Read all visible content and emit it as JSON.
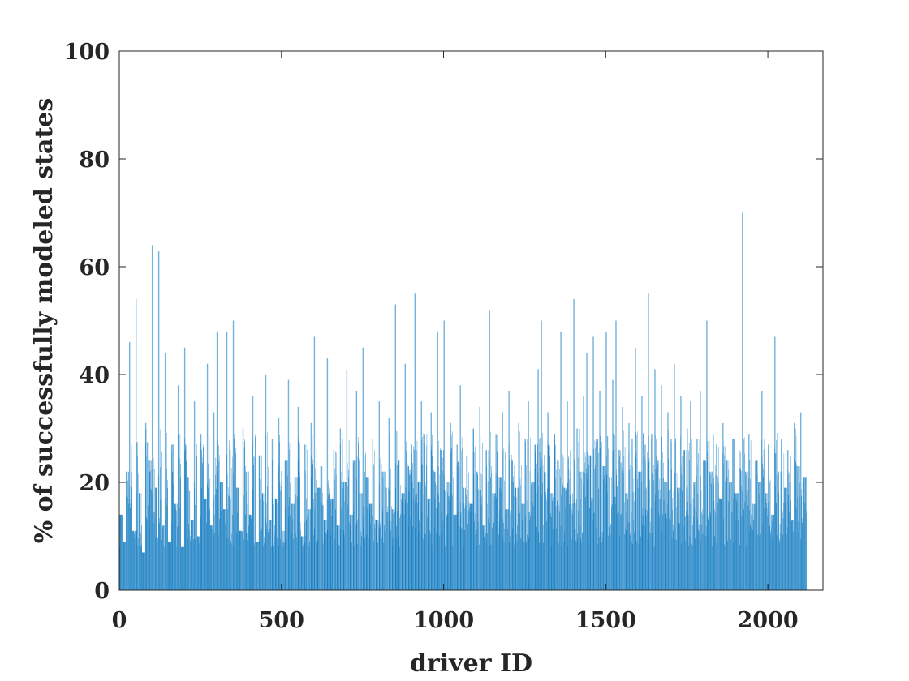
{
  "chart_data": {
    "type": "bar",
    "title": "",
    "xlabel": "driver ID",
    "ylabel": "% of successfully modeled states",
    "xlim": [
      0,
      2170
    ],
    "ylim": [
      0,
      100
    ],
    "xticks": [
      0,
      500,
      1000,
      1500,
      2000
    ],
    "yticks": [
      0,
      20,
      40,
      60,
      80,
      100
    ],
    "bar_color": "#0072bd",
    "grid": false,
    "legend": "none",
    "n_bars": 2170,
    "values_note": "",
    "series": [
      {
        "values_sampled_every_10_ids": [
          14,
          9,
          22,
          46,
          11,
          54,
          18,
          7,
          31,
          24,
          64,
          19,
          63,
          12,
          44,
          9,
          27,
          16,
          38,
          8,
          45,
          21,
          13,
          35,
          10,
          29,
          17,
          42,
          12,
          33,
          48,
          20,
          15,
          48,
          26,
          50,
          19,
          11,
          30,
          22,
          14,
          36,
          9,
          25,
          18,
          40,
          13,
          28,
          17,
          32,
          11,
          24,
          39,
          16,
          21,
          34,
          10,
          27,
          15,
          31,
          47,
          19,
          23,
          13,
          43,
          17,
          26,
          12,
          30,
          20,
          41,
          14,
          24,
          37,
          18,
          45,
          21,
          16,
          28,
          13,
          35,
          22,
          19,
          32,
          15,
          53,
          24,
          18,
          42,
          23,
          27,
          55,
          20,
          35,
          29,
          17,
          33,
          22,
          48,
          26,
          50,
          20,
          31,
          14,
          27,
          38,
          19,
          25,
          16,
          30,
          22,
          34,
          12,
          26,
          52,
          18,
          29,
          21,
          33,
          15,
          37,
          24,
          19,
          31,
          16,
          28,
          35,
          20,
          27,
          41,
          50,
          22,
          33,
          18,
          29,
          24,
          48,
          19,
          35,
          26,
          54,
          30,
          22,
          36,
          44,
          25,
          47,
          28,
          37,
          23,
          48,
          21,
          39,
          50,
          26,
          34,
          18,
          31,
          28,
          45,
          22,
          36,
          27,
          55,
          29,
          41,
          24,
          38,
          20,
          33,
          28,
          42,
          19,
          36,
          26,
          30,
          35,
          20,
          28,
          37,
          24,
          50,
          22,
          29,
          27,
          17,
          31,
          24,
          20,
          28,
          18,
          26,
          70,
          22,
          29,
          16,
          24,
          20,
          37,
          18,
          27,
          14,
          47,
          22,
          28,
          19,
          26,
          13,
          31,
          23,
          33,
          21
        ]
      }
    ]
  }
}
